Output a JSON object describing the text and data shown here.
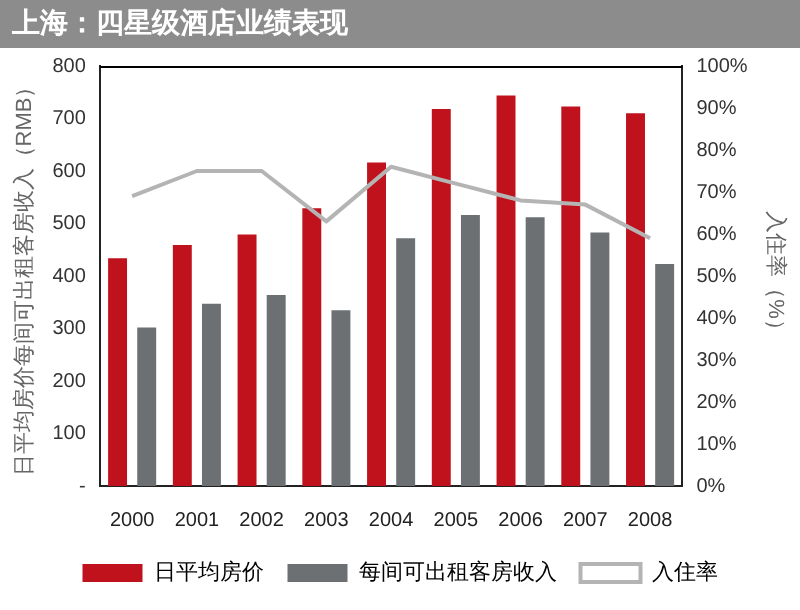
{
  "chart_data": {
    "type": "bar",
    "title": "上海：四星级酒店业绩表现",
    "categories": [
      "2000",
      "2001",
      "2002",
      "2003",
      "2004",
      "2005",
      "2006",
      "2007",
      "2008"
    ],
    "series": [
      {
        "name": "日平均房价",
        "color": "#c0121c",
        "values": [
          434,
          459,
          479,
          529,
          616,
          718,
          744,
          723,
          710
        ]
      },
      {
        "name": "每间可出租客房收入",
        "color": "#6d7073",
        "values": [
          302,
          347,
          364,
          335,
          472,
          516,
          512,
          483,
          423
        ]
      },
      {
        "name": "入住率",
        "type": "line",
        "axis": "y2",
        "color": "#b4b4b4",
        "values": [
          69,
          75,
          75,
          63,
          76,
          72,
          68,
          67,
          59
        ]
      }
    ],
    "ylabel": "日平均房价每间可出租客房收入（RMB）",
    "y2label": "入住率（%）",
    "ylim": [
      0,
      800
    ],
    "yticks": [
      {
        "value": 0,
        "label": "-"
      },
      100,
      200,
      300,
      400,
      500,
      600,
      700,
      800
    ],
    "y2lim": [
      0,
      100
    ],
    "y2ticks": [
      {
        "value": 0,
        "label": "0%"
      },
      {
        "value": 10,
        "label": "10%"
      },
      {
        "value": 20,
        "label": "20%"
      },
      {
        "value": 30,
        "label": "30%"
      },
      {
        "value": 40,
        "label": "40%"
      },
      {
        "value": 50,
        "label": "50%"
      },
      {
        "value": 60,
        "label": "60%"
      },
      {
        "value": 70,
        "label": "70%"
      },
      {
        "value": 80,
        "label": "80%"
      },
      {
        "value": 90,
        "label": "90%"
      },
      {
        "value": 100,
        "label": "100%"
      }
    ],
    "grid": false,
    "legend": "bottom",
    "marker": "none",
    "line_style": "solid"
  }
}
